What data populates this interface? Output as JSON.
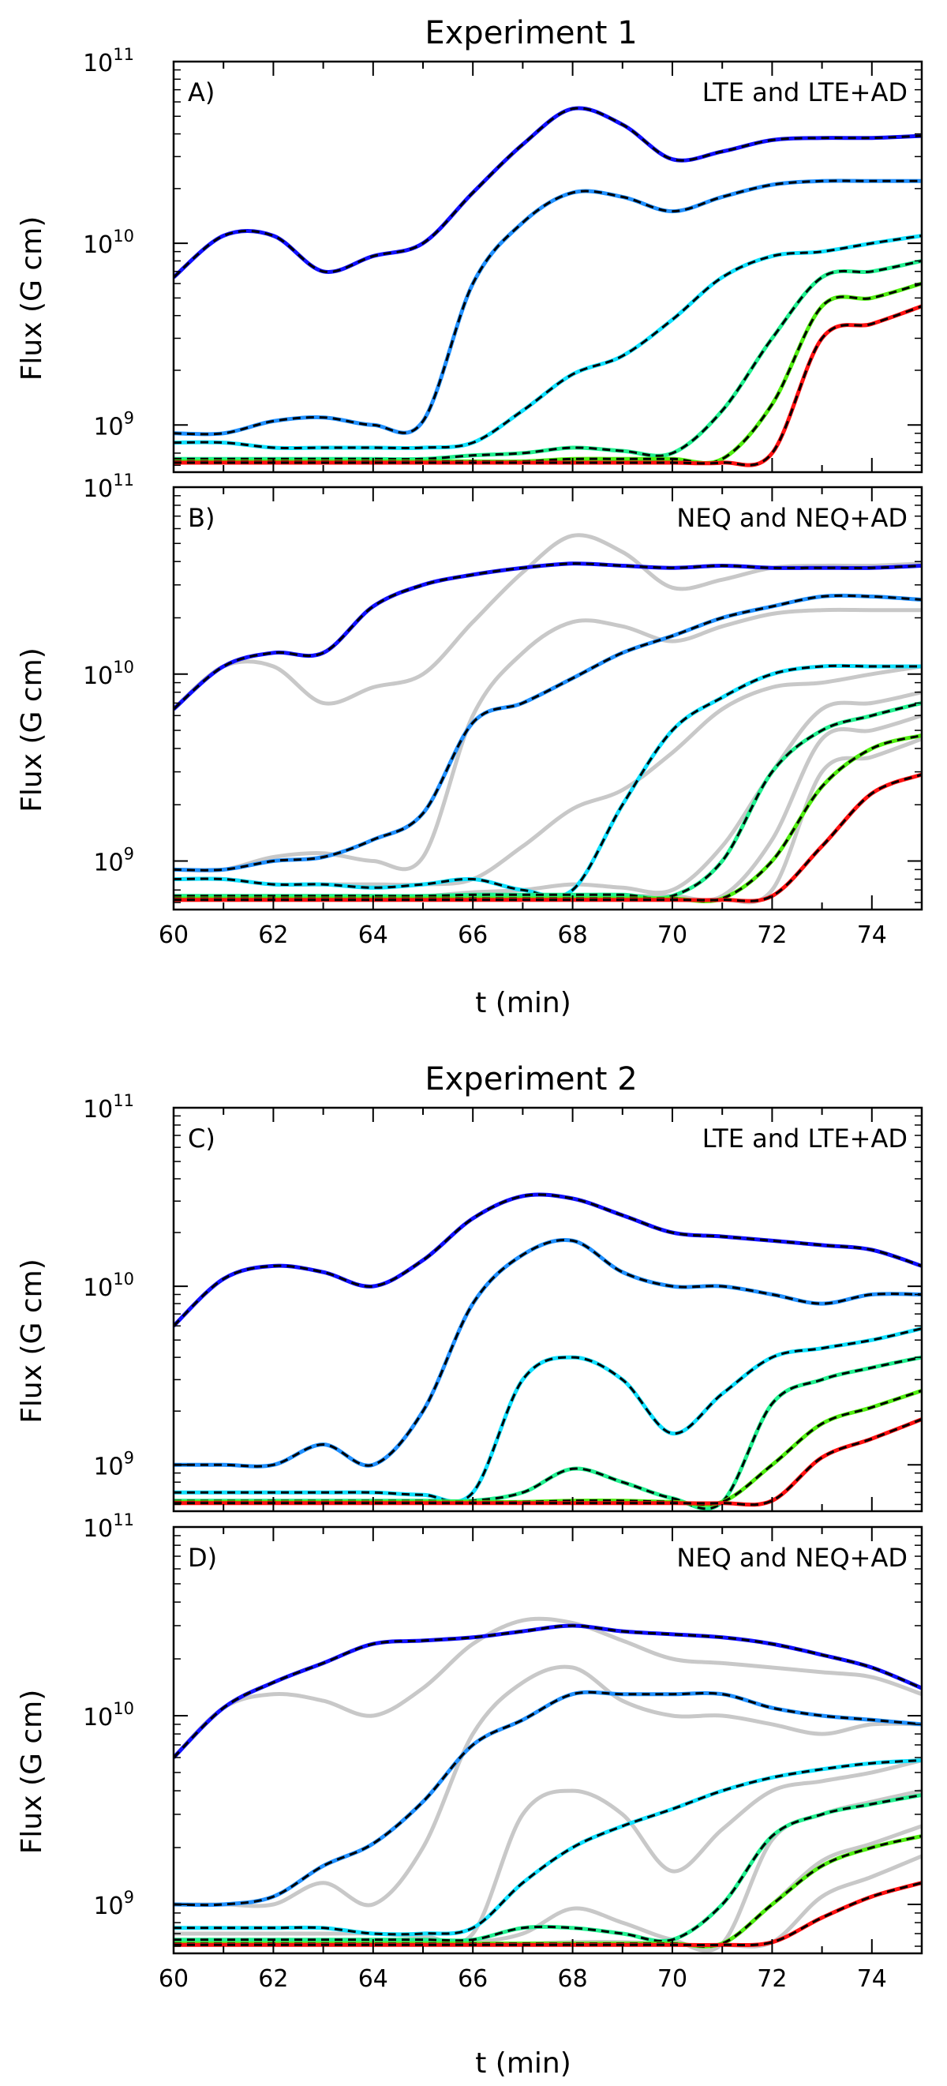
{
  "figure": {
    "titles": [
      "Experiment 1",
      "Experiment 2"
    ],
    "xlabel": "t (min)",
    "ylabel": "Flux (G cm)",
    "x_ticks": [
      "60",
      "62",
      "64",
      "66",
      "68",
      "70",
      "72",
      "74"
    ],
    "y_ticks": [
      {
        "base": "10",
        "exp": "11"
      },
      {
        "base": "10",
        "exp": "10"
      },
      {
        "base": "10",
        "exp": "9"
      }
    ]
  },
  "colors": {
    "blue": "#1010ff",
    "azure": "#2090ff",
    "cyan": "#10e0ff",
    "spring": "#20f090",
    "green": "#50ee10",
    "red": "#ff1010",
    "gray": "#c8c8c8",
    "dash": "#000000"
  },
  "chart_data": [
    {
      "type": "line",
      "panel": "A)",
      "annotation": "LTE and LTE+AD",
      "xlim": [
        60,
        75
      ],
      "ylim": [
        550000000,
        100000000000
      ],
      "yscale": "log",
      "x": [
        60,
        61,
        62,
        63,
        64,
        65,
        66,
        67,
        68,
        69,
        70,
        71,
        72,
        73,
        74,
        75
      ],
      "series": [
        {
          "name": "blue",
          "color": "blue",
          "values": [
            6500000000.0,
            11000000000.0,
            11000000000.0,
            7000000000.0,
            8500000000.0,
            10000000000.0,
            19000000000.0,
            35000000000.0,
            55000000000.0,
            45000000000.0,
            29000000000.0,
            32000000000.0,
            37000000000.0,
            38000000000.0,
            38000000000.0,
            39000000000.0
          ]
        },
        {
          "name": "azure",
          "color": "azure",
          "values": [
            900000000.0,
            900000000.0,
            1050000000.0,
            1100000000.0,
            1000000000.0,
            1050000000.0,
            6000000000.0,
            13000000000.0,
            19000000000.0,
            18000000000.0,
            15000000000.0,
            18000000000.0,
            21000000000.0,
            22000000000.0,
            22000000000.0,
            22000000000.0
          ]
        },
        {
          "name": "cyan",
          "color": "cyan",
          "values": [
            800000000.0,
            800000000.0,
            750000000.0,
            750000000.0,
            750000000.0,
            750000000.0,
            800000000.0,
            1200000000.0,
            1900000000.0,
            2400000000.0,
            3800000000.0,
            6500000000.0,
            8500000000.0,
            9000000000.0,
            10000000000.0,
            11000000000.0
          ]
        },
        {
          "name": "spring",
          "color": "spring",
          "values": [
            650000000.0,
            650000000.0,
            650000000.0,
            650000000.0,
            650000000.0,
            650000000.0,
            680000000.0,
            700000000.0,
            750000000.0,
            720000000.0,
            700000000.0,
            1200000000.0,
            3000000000.0,
            6500000000.0,
            7000000000.0,
            8000000000.0
          ]
        },
        {
          "name": "green",
          "color": "green",
          "values": [
            630000000.0,
            630000000.0,
            630000000.0,
            630000000.0,
            630000000.0,
            630000000.0,
            630000000.0,
            630000000.0,
            650000000.0,
            650000000.0,
            650000000.0,
            650000000.0,
            1300000000.0,
            4500000000.0,
            5000000000.0,
            6000000000.0
          ]
        },
        {
          "name": "red",
          "color": "red",
          "values": [
            620000000.0,
            620000000.0,
            620000000.0,
            620000000.0,
            620000000.0,
            620000000.0,
            620000000.0,
            620000000.0,
            620000000.0,
            620000000.0,
            620000000.0,
            620000000.0,
            700000000.0,
            3000000000.0,
            3600000000.0,
            4500000000.0
          ]
        }
      ]
    },
    {
      "type": "line",
      "panel": "B)",
      "annotation": "NEQ and NEQ+AD",
      "xlim": [
        60,
        75
      ],
      "ylim": [
        550000000,
        100000000000
      ],
      "yscale": "log",
      "x": [
        60,
        61,
        62,
        63,
        64,
        65,
        66,
        67,
        68,
        69,
        70,
        71,
        72,
        73,
        74,
        75
      ],
      "series": [
        {
          "name": "blue",
          "color": "blue",
          "values": [
            6500000000.0,
            11000000000.0,
            13000000000.0,
            13000000000.0,
            23000000000.0,
            30000000000.0,
            34000000000.0,
            37000000000.0,
            39000000000.0,
            38000000000.0,
            37000000000.0,
            38000000000.0,
            37000000000.0,
            37000000000.0,
            37000000000.0,
            38000000000.0
          ]
        },
        {
          "name": "azure",
          "color": "azure",
          "values": [
            900000000.0,
            900000000.0,
            1000000000.0,
            1050000000.0,
            1300000000.0,
            1800000000.0,
            5500000000.0,
            7000000000.0,
            9500000000.0,
            13000000000.0,
            16000000000.0,
            20000000000.0,
            23000000000.0,
            26000000000.0,
            26000000000.0,
            25000000000.0
          ]
        },
        {
          "name": "cyan",
          "color": "cyan",
          "values": [
            800000000.0,
            800000000.0,
            750000000.0,
            750000000.0,
            720000000.0,
            750000000.0,
            800000000.0,
            700000000.0,
            700000000.0,
            2000000000.0,
            5000000000.0,
            7500000000.0,
            10000000000.0,
            11000000000.0,
            11000000000.0,
            11000000000.0
          ]
        },
        {
          "name": "spring",
          "color": "spring",
          "values": [
            650000000.0,
            650000000.0,
            650000000.0,
            650000000.0,
            650000000.0,
            650000000.0,
            660000000.0,
            660000000.0,
            660000000.0,
            660000000.0,
            650000000.0,
            1000000000.0,
            3000000000.0,
            5000000000.0,
            6000000000.0,
            7000000000.0
          ]
        },
        {
          "name": "green",
          "color": "green",
          "values": [
            630000000.0,
            630000000.0,
            630000000.0,
            630000000.0,
            630000000.0,
            630000000.0,
            630000000.0,
            630000000.0,
            630000000.0,
            630000000.0,
            630000000.0,
            630000000.0,
            1000000000.0,
            2500000000.0,
            4000000000.0,
            4700000000.0
          ]
        },
        {
          "name": "red",
          "color": "red",
          "values": [
            620000000.0,
            620000000.0,
            620000000.0,
            620000000.0,
            620000000.0,
            620000000.0,
            620000000.0,
            620000000.0,
            620000000.0,
            620000000.0,
            620000000.0,
            620000000.0,
            650000000.0,
            1200000000.0,
            2300000000.0,
            2900000000.0
          ]
        }
      ]
    },
    {
      "type": "line",
      "panel": "C)",
      "annotation": "LTE and LTE+AD",
      "xlim": [
        60,
        75
      ],
      "ylim": [
        550000000,
        100000000000
      ],
      "yscale": "log",
      "x": [
        60,
        61,
        62,
        63,
        64,
        65,
        66,
        67,
        68,
        69,
        70,
        71,
        72,
        73,
        74,
        75
      ],
      "series": [
        {
          "name": "blue",
          "color": "blue",
          "values": [
            6000000000.0,
            11000000000.0,
            13000000000.0,
            12000000000.0,
            10000000000.0,
            14000000000.0,
            24000000000.0,
            32000000000.0,
            31000000000.0,
            25000000000.0,
            20000000000.0,
            19000000000.0,
            18000000000.0,
            17000000000.0,
            16000000000.0,
            13000000000.0
          ]
        },
        {
          "name": "azure",
          "color": "azure",
          "values": [
            1000000000.0,
            1000000000.0,
            1000000000.0,
            1300000000.0,
            1000000000.0,
            2000000000.0,
            8000000000.0,
            15000000000.0,
            18000000000.0,
            12000000000.0,
            10000000000.0,
            10000000000.0,
            9000000000.0,
            8000000000.0,
            9000000000.0,
            9000000000.0
          ]
        },
        {
          "name": "cyan",
          "color": "cyan",
          "values": [
            700000000.0,
            700000000.0,
            700000000.0,
            700000000.0,
            700000000.0,
            680000000.0,
            700000000.0,
            3000000000.0,
            4000000000.0,
            3000000000.0,
            1500000000.0,
            2500000000.0,
            4000000000.0,
            4500000000.0,
            5000000000.0,
            5800000000.0
          ]
        },
        {
          "name": "spring",
          "color": "spring",
          "values": [
            630000000.0,
            630000000.0,
            630000000.0,
            630000000.0,
            630000000.0,
            630000000.0,
            630000000.0,
            700000000.0,
            950000000.0,
            800000000.0,
            650000000.0,
            620000000.0,
            2200000000.0,
            3000000000.0,
            3500000000.0,
            4000000000.0
          ]
        },
        {
          "name": "green",
          "color": "green",
          "values": [
            620000000.0,
            620000000.0,
            620000000.0,
            620000000.0,
            620000000.0,
            620000000.0,
            620000000.0,
            620000000.0,
            630000000.0,
            630000000.0,
            620000000.0,
            620000000.0,
            1000000000.0,
            1700000000.0,
            2100000000.0,
            2600000000.0
          ]
        },
        {
          "name": "red",
          "color": "red",
          "values": [
            610000000.0,
            610000000.0,
            610000000.0,
            610000000.0,
            610000000.0,
            610000000.0,
            610000000.0,
            610000000.0,
            610000000.0,
            610000000.0,
            610000000.0,
            610000000.0,
            630000000.0,
            1100000000.0,
            1400000000.0,
            1800000000.0
          ]
        }
      ]
    },
    {
      "type": "line",
      "panel": "D)",
      "annotation": "NEQ and NEQ+AD",
      "xlim": [
        60,
        75
      ],
      "ylim": [
        550000000,
        100000000000
      ],
      "yscale": "log",
      "x": [
        60,
        61,
        62,
        63,
        64,
        65,
        66,
        67,
        68,
        69,
        70,
        71,
        72,
        73,
        74,
        75
      ],
      "series": [
        {
          "name": "blue",
          "color": "blue",
          "values": [
            6000000000.0,
            11000000000.0,
            15000000000.0,
            19000000000.0,
            24000000000.0,
            25000000000.0,
            26000000000.0,
            28000000000.0,
            30000000000.0,
            28000000000.0,
            27000000000.0,
            26000000000.0,
            24000000000.0,
            21000000000.0,
            18000000000.0,
            14000000000.0
          ]
        },
        {
          "name": "azure",
          "color": "azure",
          "values": [
            1000000000.0,
            1000000000.0,
            1100000000.0,
            1600000000.0,
            2100000000.0,
            3500000000.0,
            7000000000.0,
            9500000000.0,
            13000000000.0,
            13000000000.0,
            13000000000.0,
            13000000000.0,
            11000000000.0,
            10000000000.0,
            9500000000.0,
            9000000000.0
          ]
        },
        {
          "name": "cyan",
          "color": "cyan",
          "values": [
            750000000.0,
            750000000.0,
            750000000.0,
            750000000.0,
            700000000.0,
            700000000.0,
            750000000.0,
            1300000000.0,
            2000000000.0,
            2600000000.0,
            3200000000.0,
            4000000000.0,
            4700000000.0,
            5200000000.0,
            5600000000.0,
            5800000000.0
          ]
        },
        {
          "name": "spring",
          "color": "spring",
          "values": [
            650000000.0,
            650000000.0,
            650000000.0,
            650000000.0,
            650000000.0,
            650000000.0,
            650000000.0,
            750000000.0,
            750000000.0,
            700000000.0,
            650000000.0,
            1000000000.0,
            2300000000.0,
            3000000000.0,
            3400000000.0,
            3800000000.0
          ]
        },
        {
          "name": "green",
          "color": "green",
          "values": [
            620000000.0,
            620000000.0,
            620000000.0,
            620000000.0,
            620000000.0,
            620000000.0,
            620000000.0,
            620000000.0,
            620000000.0,
            620000000.0,
            620000000.0,
            620000000.0,
            1000000000.0,
            1600000000.0,
            2000000000.0,
            2300000000.0
          ]
        },
        {
          "name": "red",
          "color": "red",
          "values": [
            610000000.0,
            610000000.0,
            610000000.0,
            610000000.0,
            610000000.0,
            610000000.0,
            610000000.0,
            610000000.0,
            610000000.0,
            610000000.0,
            610000000.0,
            610000000.0,
            630000000.0,
            850000000.0,
            1100000000.0,
            1300000000.0
          ]
        }
      ]
    }
  ]
}
